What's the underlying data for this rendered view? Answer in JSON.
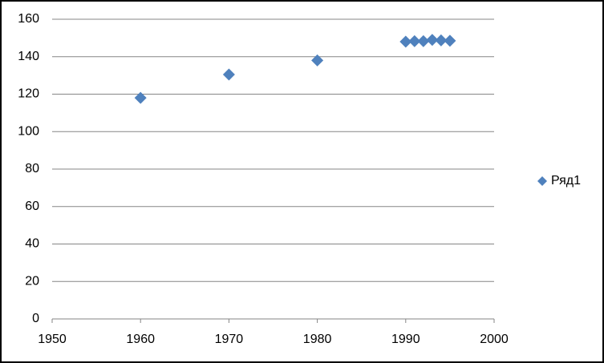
{
  "chart_data": {
    "type": "scatter",
    "series": [
      {
        "name": "Ряд1",
        "color": "#4f81bd",
        "x": [
          1960,
          1970,
          1980,
          1990,
          1991,
          1992,
          1993,
          1994,
          1995
        ],
        "values": [
          118,
          130.5,
          138,
          148,
          148.3,
          148.3,
          149,
          148.7,
          148.5
        ]
      }
    ],
    "xlim": [
      1950,
      2000
    ],
    "xticks": [
      1950,
      1960,
      1970,
      1980,
      1990,
      2000
    ],
    "ylim": [
      0,
      160
    ],
    "yticks": [
      0,
      20,
      40,
      60,
      80,
      100,
      120,
      140,
      160
    ],
    "grid": true,
    "legend": "right"
  }
}
